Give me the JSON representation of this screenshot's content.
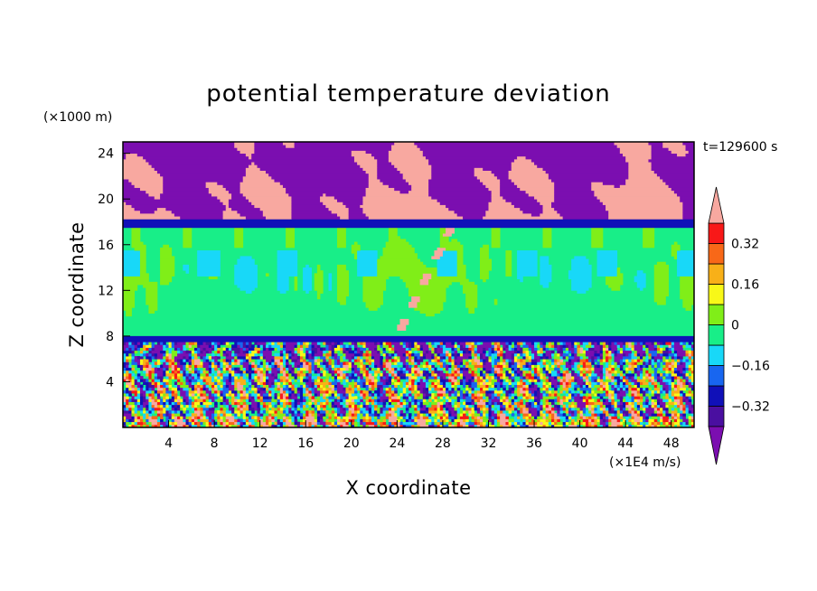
{
  "chart_data": {
    "type": "heatmap",
    "title": "potential temperature deviation",
    "xlabel": "X coordinate",
    "ylabel": "Z coordinate",
    "x_unit_label": "(×1E4 m/s)",
    "y_unit_label": "(×1000 m)",
    "time_label": "t=129600 s",
    "xlim": [
      0,
      50
    ],
    "ylim": [
      0,
      25
    ],
    "x_ticks": [
      4,
      8,
      12,
      16,
      20,
      24,
      28,
      32,
      36,
      40,
      44,
      48
    ],
    "y_ticks": [
      4,
      8,
      12,
      16,
      20,
      24
    ],
    "colorbar": {
      "levels": [
        -0.4,
        -0.32,
        -0.24,
        -0.16,
        -0.08,
        0,
        0.08,
        0.16,
        0.24,
        0.32,
        0.4
      ],
      "tick_labels": [
        "0.32",
        "0.16",
        "0",
        "−0.16",
        "−0.32"
      ],
      "tick_values": [
        0.32,
        0.16,
        0,
        -0.16,
        -0.32
      ],
      "colors": [
        "#7b0eb0",
        "#4a0fa0",
        "#1010b8",
        "#1866f0",
        "#18d8f8",
        "#18ee88",
        "#80ee18",
        "#f8f818",
        "#f8b018",
        "#f86818",
        "#f81818",
        "#f8a8a0"
      ],
      "extend": "both"
    },
    "layers": [
      {
        "z_range": [
          18.2,
          25
        ],
        "description_values": "mixed -0.4 and above 0.4"
      },
      {
        "z_range": [
          17.5,
          18.2
        ],
        "value": -0.32
      },
      {
        "z_range": [
          8,
          17.5
        ],
        "value_range": [
          -0.08,
          0.08
        ]
      },
      {
        "z_range": [
          7.5,
          8
        ],
        "value": -0.32
      },
      {
        "z_range": [
          0,
          7.5
        ],
        "value_range": [
          -0.4,
          0.4
        ]
      }
    ]
  }
}
